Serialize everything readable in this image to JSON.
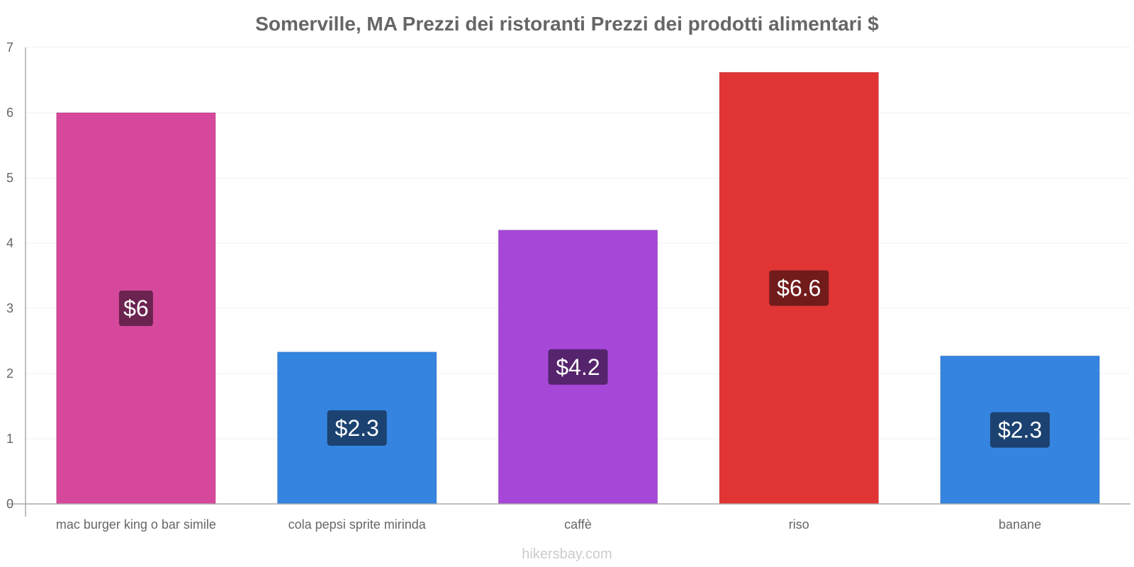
{
  "chart_data": {
    "type": "bar",
    "title": "Somerville, MA Prezzi dei ristoranti Prezzi dei prodotti alimentari $",
    "xlabel": "",
    "ylabel": "",
    "ylim": [
      0,
      7
    ],
    "yticks": [
      0,
      1,
      2,
      3,
      4,
      5,
      6,
      7
    ],
    "yticks_labels": [
      "0",
      "1",
      "2",
      "3",
      "4",
      "5",
      "6",
      "7"
    ],
    "grid": true,
    "categories": [
      "mac burger king o bar simile",
      "cola pepsi sprite mirinda",
      "caffè",
      "riso",
      "banane"
    ],
    "values": [
      6.0,
      2.33,
      4.2,
      6.62,
      2.27
    ],
    "data_labels": [
      "$6",
      "$2.3",
      "$4.2",
      "$6.6",
      "$2.3"
    ],
    "bar_colors": [
      "#d6489c",
      "#3584e0",
      "#a647d8",
      "#e13535",
      "#3584e0"
    ],
    "label_colors": [
      "#6b2350",
      "#1b4270",
      "#55246d",
      "#711b1b",
      "#1b4270"
    ]
  },
  "watermark": "hikersbay.com"
}
